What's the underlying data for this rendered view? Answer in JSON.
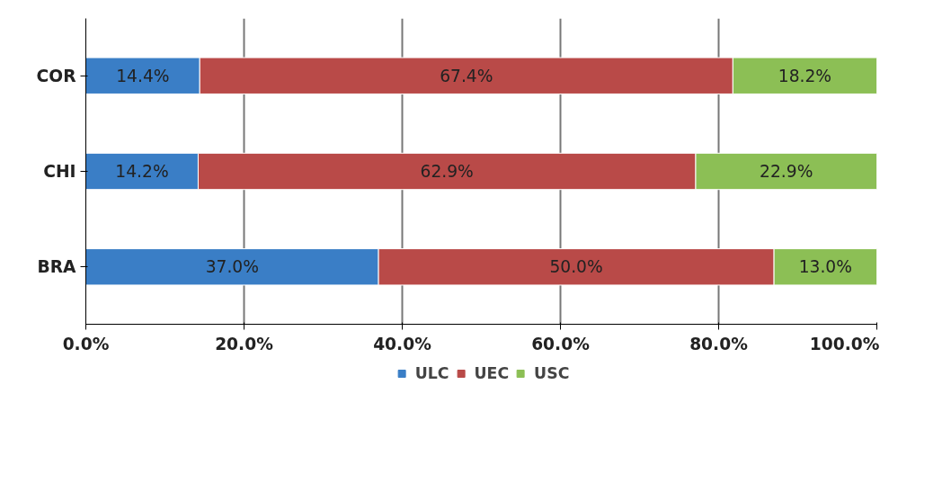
{
  "chart_data": {
    "type": "bar",
    "orientation": "horizontal",
    "stacked": true,
    "categories": [
      "COR",
      "CHI",
      "BRA"
    ],
    "series": [
      {
        "name": "ULC",
        "color": "#3a7ec6",
        "values": [
          14.4,
          14.2,
          37.0
        ],
        "value_labels": [
          "14.4%",
          "14.2%",
          "37.0%"
        ]
      },
      {
        "name": "UEC",
        "color": "#b94a48",
        "values": [
          67.4,
          62.9,
          50.0
        ],
        "value_labels": [
          "67.4%",
          "62.9%",
          "50.0%"
        ]
      },
      {
        "name": "USC",
        "color": "#8cbf55",
        "values": [
          18.2,
          22.9,
          13.0
        ],
        "value_labels": [
          "18.2%",
          "22.9%",
          "13.0%"
        ]
      }
    ],
    "xlim": [
      0,
      100
    ],
    "xticks": [
      {
        "value": 0,
        "label": "0.0%"
      },
      {
        "value": 20,
        "label": "20.0%"
      },
      {
        "value": 40,
        "label": "40.0%"
      },
      {
        "value": 60,
        "label": "60.0%"
      },
      {
        "value": 80,
        "label": "80.0%"
      },
      {
        "value": 100,
        "label": "100.0%"
      }
    ],
    "grid": "x",
    "legend": "bottom"
  }
}
